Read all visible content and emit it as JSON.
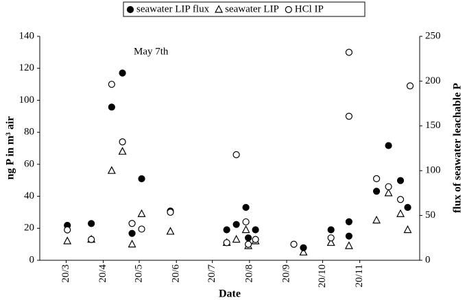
{
  "chart_data": {
    "type": "scatter",
    "x_label": "Date",
    "y_label": "ng P in m³ air",
    "y2_label": "flux of seawater leachable P",
    "annotation": "May 7th",
    "xlim": [
      57,
      374
    ],
    "xticks": [
      {
        "value": 79,
        "label": "20/3"
      },
      {
        "value": 110,
        "label": "20/4"
      },
      {
        "value": 140,
        "label": "20/5"
      },
      {
        "value": 171,
        "label": "20/6"
      },
      {
        "value": 201,
        "label": "20/7"
      },
      {
        "value": 232,
        "label": "20/8"
      },
      {
        "value": 263,
        "label": "20/9"
      },
      {
        "value": 293,
        "label": "20/10"
      },
      {
        "value": 324,
        "label": "20/11"
      }
    ],
    "ylim": [
      0,
      140
    ],
    "yticks": [
      0,
      20,
      40,
      60,
      80,
      100,
      120,
      140
    ],
    "y2lim": [
      0,
      250
    ],
    "y2ticks": [
      0,
      50,
      100,
      150,
      200,
      250
    ],
    "grid": false,
    "legend": "top",
    "series": [
      {
        "name": "seawater LIP flux",
        "marker": "filled-circle",
        "color": "#000000",
        "axis": "y2",
        "x": [
          80,
          100,
          117,
          126,
          134,
          142,
          166,
          213,
          221,
          229,
          231,
          237,
          277,
          300,
          315,
          315,
          338,
          348,
          358,
          364
        ],
        "values": [
          39,
          41,
          171,
          209,
          30,
          91,
          55,
          34,
          40,
          59,
          25,
          34,
          14,
          34,
          43,
          27,
          77,
          128,
          89,
          59
        ]
      },
      {
        "name": "seawater LIP",
        "marker": "triangle",
        "color": "#000000",
        "x": [
          80,
          100,
          117,
          126,
          134,
          142,
          166,
          213,
          221,
          229,
          231,
          237,
          277,
          300,
          315,
          338,
          348,
          358,
          364
        ],
        "values": [
          12,
          13,
          56,
          68,
          10,
          29,
          18,
          11,
          13,
          19,
          9,
          12,
          5,
          11,
          9,
          25,
          42,
          29,
          19
        ]
      },
      {
        "name": "HCl IP",
        "marker": "open-circle",
        "color": "#000000",
        "x": [
          80,
          100,
          117,
          126,
          134,
          142,
          166,
          213,
          221,
          229,
          231,
          237,
          269,
          300,
          315,
          315,
          338,
          348,
          358,
          366
        ],
        "values": [
          19,
          13,
          110,
          74,
          23,
          19.5,
          30,
          11,
          66,
          24,
          10,
          13,
          10,
          14,
          130,
          90,
          51,
          46,
          38,
          109
        ]
      }
    ]
  }
}
